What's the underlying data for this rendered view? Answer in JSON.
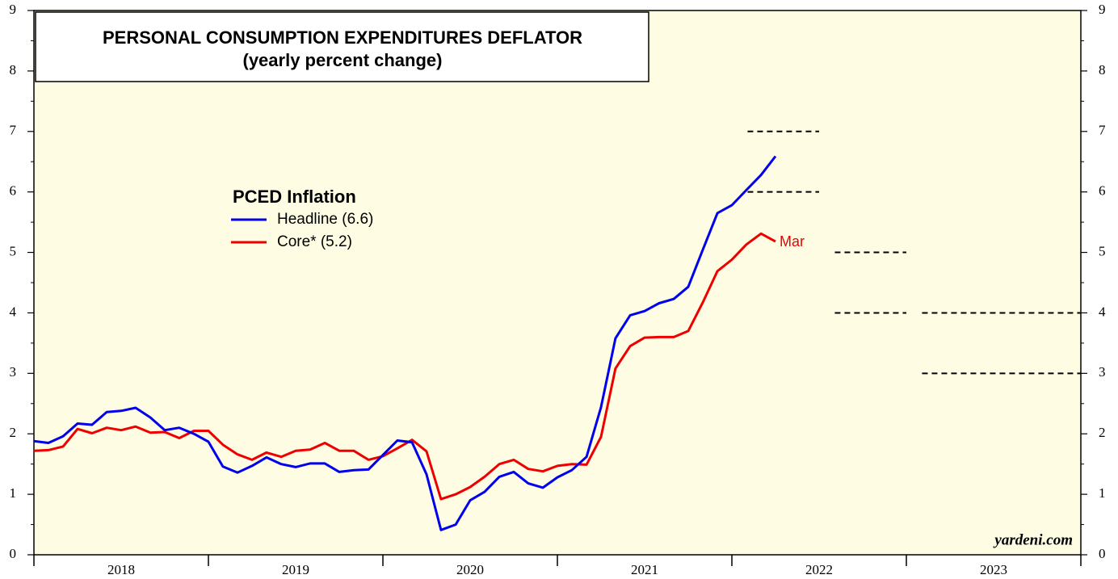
{
  "chart_data": {
    "type": "line",
    "title": "PERSONAL CONSUMPTION EXPENDITURES DEFLATOR",
    "subtitle": "(yearly percent change)",
    "legend_title": "PCED Inflation",
    "annotations": [
      "Mar",
      "yardeni.com"
    ],
    "x": [
      2018,
      2018.083,
      2018.167,
      2018.25,
      2018.333,
      2018.417,
      2018.5,
      2018.583,
      2018.667,
      2018.75,
      2018.833,
      2018.917,
      2019,
      2019.083,
      2019.167,
      2019.25,
      2019.333,
      2019.417,
      2019.5,
      2019.583,
      2019.667,
      2019.75,
      2019.833,
      2019.917,
      2020,
      2020.083,
      2020.167,
      2020.25,
      2020.333,
      2020.417,
      2020.5,
      2020.583,
      2020.667,
      2020.75,
      2020.833,
      2020.917,
      2021,
      2021.083,
      2021.167,
      2021.25,
      2021.333,
      2021.417,
      2021.5,
      2021.583,
      2021.667,
      2021.75,
      2021.833,
      2021.917,
      2022,
      2022.083,
      2022.167,
      2022.25
    ],
    "series": [
      {
        "name": "Headline (6.6)",
        "color": "#0000ee",
        "values": [
          1.88,
          1.85,
          1.96,
          2.17,
          2.15,
          2.36,
          2.38,
          2.43,
          2.27,
          2.06,
          2.1,
          2.0,
          1.87,
          1.46,
          1.36,
          1.47,
          1.61,
          1.5,
          1.45,
          1.51,
          1.51,
          1.37,
          1.4,
          1.41,
          1.65,
          1.89,
          1.86,
          1.33,
          0.41,
          0.5,
          0.9,
          1.04,
          1.29,
          1.37,
          1.18,
          1.11,
          1.28,
          1.4,
          1.62,
          2.44,
          3.58,
          3.96,
          4.03,
          4.16,
          4.23,
          4.43,
          5.04,
          5.65,
          5.78,
          6.03,
          6.28,
          6.59
        ]
      },
      {
        "name": "Core* (5.2)",
        "color": "#ee0000",
        "values": [
          1.72,
          1.73,
          1.79,
          2.08,
          2.01,
          2.1,
          2.06,
          2.12,
          2.02,
          2.03,
          1.93,
          2.05,
          2.05,
          1.82,
          1.66,
          1.57,
          1.69,
          1.62,
          1.72,
          1.74,
          1.85,
          1.72,
          1.72,
          1.57,
          1.63,
          1.76,
          1.9,
          1.71,
          0.92,
          1.0,
          1.12,
          1.29,
          1.5,
          1.57,
          1.42,
          1.38,
          1.47,
          1.5,
          1.49,
          1.95,
          3.08,
          3.45,
          3.59,
          3.6,
          3.6,
          3.7,
          4.17,
          4.69,
          4.88,
          5.13,
          5.31,
          5.18
        ]
      }
    ],
    "reference_lines": [
      {
        "y": 7,
        "x": [
          2022.09,
          2022.5
        ]
      },
      {
        "y": 6,
        "x": [
          2022.09,
          2022.5
        ]
      },
      {
        "y": 5,
        "x": [
          2022.59,
          2023
        ]
      },
      {
        "y": 4,
        "x": [
          2022.59,
          2023
        ]
      },
      {
        "y": 4,
        "x": [
          2023.09,
          2024
        ]
      },
      {
        "y": 3,
        "x": [
          2023.09,
          2024
        ]
      }
    ],
    "xlim": [
      2018,
      2024
    ],
    "xticks": [
      2018,
      2019,
      2020,
      2021,
      2022,
      2023,
      2024
    ],
    "ylim": [
      0,
      9
    ],
    "yticks": [
      0,
      1,
      2,
      3,
      4,
      5,
      6,
      7,
      8,
      9
    ],
    "yminor": [
      0.5,
      1.5,
      2.5,
      3.5,
      4.5,
      5.5,
      6.5,
      7.5,
      8.5
    ],
    "background": "#fefde3"
  }
}
